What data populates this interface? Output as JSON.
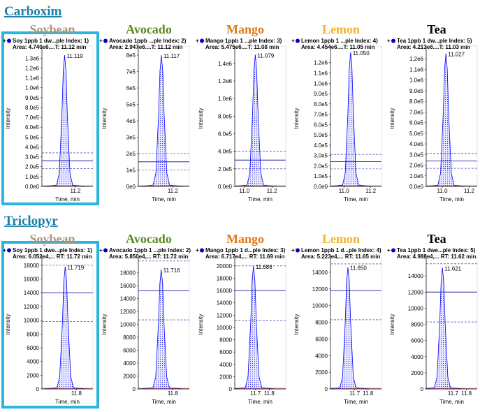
{
  "sections": [
    {
      "heading": "Carboxim"
    },
    {
      "heading": "Triclopyr"
    }
  ],
  "chart_data": [
    {
      "type": "line",
      "title": "Soybean",
      "title_color": "#a8977b",
      "highlighted": true,
      "legend": [
        "Soy 1ppb 1 dw...ple Index: 1)",
        "Area: 4.740e6....T: 11.12 min"
      ],
      "xlabel": "Time, min",
      "ylabel": "Intensity",
      "xlim": [
        10.95,
        11.33
      ],
      "xticks": [
        11.2
      ],
      "ylim": [
        0,
        1380000
      ],
      "yticks": [
        {
          "value": 0,
          "label": "0.0e0"
        },
        {
          "value": 100000,
          "label": "1.0e5"
        },
        {
          "value": 200000,
          "label": "2.0e5"
        },
        {
          "value": 300000,
          "label": "3.0e5"
        },
        {
          "value": 400000,
          "label": "4.0e5"
        },
        {
          "value": 500000,
          "label": "5.0e5"
        },
        {
          "value": 600000,
          "label": "6.0e5"
        },
        {
          "value": 700000,
          "label": "7.0e5"
        },
        {
          "value": 800000,
          "label": "8.0e5"
        },
        {
          "value": 900000,
          "label": "9.0e5"
        },
        {
          "value": 1000000,
          "label": "1.0e6"
        },
        {
          "value": 1100000,
          "label": "1.1e6"
        },
        {
          "value": 1200000,
          "label": "1.2e6"
        },
        {
          "value": 1300000,
          "label": "1.3e6"
        }
      ],
      "thresholds": [
        340000,
        260000,
        180000
      ],
      "series": [
        {
          "color": "#0000ff",
          "x": [
            10.959,
            11.059,
            11.079,
            11.099,
            11.109,
            11.119,
            11.129,
            11.139,
            11.159,
            11.179,
            11.279
          ],
          "values": [
            0,
            13300,
            133000,
            731500,
            1170400,
            1330000,
            1170400,
            731500,
            133000,
            13300,
            0
          ]
        }
      ],
      "annotations": [
        {
          "text": "11.119",
          "x": 11.119,
          "y": 1330000
        }
      ]
    },
    {
      "type": "line",
      "title": "Avocado",
      "title_color": "#5a8a1e",
      "highlighted": false,
      "legend": [
        "Avocado 1ppb ...ple Index: 2)",
        "Area: 2.947e6....T: 11.12 min"
      ],
      "xlabel": "Time, min",
      "ylabel": "Intensity",
      "xlim": [
        10.95,
        11.32
      ],
      "xticks": [
        11.2
      ],
      "ylim": [
        0,
        830000
      ],
      "yticks": [
        {
          "value": 0,
          "label": "0e0"
        },
        {
          "value": 100000,
          "label": "1e5"
        },
        {
          "value": 200000,
          "label": "2e5"
        },
        {
          "value": 300000,
          "label": "3e5"
        },
        {
          "value": 400000,
          "label": "4e5"
        },
        {
          "value": 500000,
          "label": "5e5"
        },
        {
          "value": 600000,
          "label": "6e5"
        },
        {
          "value": 700000,
          "label": "7e5"
        },
        {
          "value": 800000,
          "label": "8e5"
        }
      ],
      "thresholds": [
        200000,
        150000,
        100000
      ],
      "series": [
        {
          "color": "#0000ff",
          "x": [
            10.957,
            11.057,
            11.077,
            11.097,
            11.107,
            11.117,
            11.127,
            11.137,
            11.157,
            11.177,
            11.277
          ],
          "values": [
            0,
            8000,
            80000,
            440000,
            704000,
            800000,
            704000,
            440000,
            80000,
            8000,
            0
          ]
        }
      ],
      "annotations": [
        {
          "text": "11.117",
          "x": 11.117,
          "y": 800000
        }
      ]
    },
    {
      "type": "line",
      "title": "Mango",
      "title_color": "#e0791a",
      "highlighted": false,
      "legend": [
        "Mango 1ppb 1 ...ple Index: 3)",
        "Area: 5.475e6....T: 11.08 min"
      ],
      "xlabel": "Time, min",
      "ylabel": "Intensity",
      "xlim": [
        10.93,
        11.3
      ],
      "xticks": [
        {
          "value": 11.0,
          "label": "11.0"
        },
        11.2
      ],
      "ylim": [
        0,
        1550000
      ],
      "yticks": [
        {
          "value": 0,
          "label": "0.0e0"
        },
        {
          "value": 200000,
          "label": "2.0e5"
        },
        {
          "value": 400000,
          "label": "4.0e5"
        },
        {
          "value": 600000,
          "label": "6.0e5"
        },
        {
          "value": 800000,
          "label": "8.0e5"
        },
        {
          "value": 1000000,
          "label": "1.0e6"
        },
        {
          "value": 1200000,
          "label": "1.2e6"
        },
        {
          "value": 1400000,
          "label": "1.4e6"
        }
      ],
      "thresholds": [
        400000,
        300000,
        200000
      ],
      "series": [
        {
          "color": "#0000ff",
          "x": [
            10.919,
            11.019,
            11.039,
            11.059,
            11.069,
            11.079,
            11.089,
            11.099,
            11.119,
            11.139,
            11.239
          ],
          "values": [
            0,
            15000,
            150000,
            825000,
            1320000,
            1500000,
            1320000,
            825000,
            150000,
            15000,
            0
          ]
        }
      ],
      "annotations": [
        {
          "text": "11.079",
          "x": 11.079,
          "y": 1500000
        }
      ]
    },
    {
      "type": "line",
      "title": "Lemon",
      "title_color": "#f4b52e",
      "highlighted": false,
      "legend": [
        "Lemon 1ppb 1 ...ple Index: 4)",
        "Area: 4.454e6....T: 11.05 min"
      ],
      "xlabel": "Time, min",
      "ylabel": "Intensity",
      "xlim": [
        10.9,
        11.28
      ],
      "xticks": [
        {
          "value": 11.0,
          "label": "11.0"
        },
        11.2
      ],
      "ylim": [
        0,
        1320000
      ],
      "yticks": [
        {
          "value": 0,
          "label": "0.0e0"
        },
        {
          "value": 100000,
          "label": "1.0e5"
        },
        {
          "value": 200000,
          "label": "2.0e5"
        },
        {
          "value": 300000,
          "label": "3.0e5"
        },
        {
          "value": 400000,
          "label": "4.0e5"
        },
        {
          "value": 500000,
          "label": "5.0e5"
        },
        {
          "value": 600000,
          "label": "6.0e5"
        },
        {
          "value": 700000,
          "label": "7.0e5"
        },
        {
          "value": 800000,
          "label": "8.0e5"
        },
        {
          "value": 900000,
          "label": "9.0e5"
        },
        {
          "value": 1000000,
          "label": "1.0e6"
        },
        {
          "value": 1100000,
          "label": "1.1e6"
        },
        {
          "value": 1200000,
          "label": "1.2e6"
        }
      ],
      "thresholds": [
        310000,
        240000,
        170000
      ],
      "series": [
        {
          "color": "#0000ff",
          "x": [
            10.89,
            10.99,
            11.01,
            11.03,
            11.04,
            11.05,
            11.06,
            11.07,
            11.09,
            11.11,
            11.21
          ],
          "values": [
            0,
            13000,
            130000,
            715000,
            1144000,
            1300000,
            1144000,
            715000,
            130000,
            13000,
            0
          ]
        }
      ],
      "annotations": [
        {
          "text": "11.050",
          "x": 11.05,
          "y": 1300000
        }
      ]
    },
    {
      "type": "line",
      "title": "Tea",
      "title_color": "#000000",
      "highlighted": false,
      "legend": [
        "Tea 1ppb 1 dw...ple Index: 5)",
        "Area: 4.213e6....T: 11.03 min"
      ],
      "xlabel": "Time, min",
      "ylabel": "Intensity",
      "xlim": [
        10.88,
        11.26
      ],
      "xticks": [
        {
          "value": 11.0,
          "label": "11.0"
        },
        11.2
      ],
      "ylim": [
        0,
        1280000
      ],
      "yticks": [
        {
          "value": 0,
          "label": "0.0e0"
        },
        {
          "value": 100000,
          "label": "1.0e5"
        },
        {
          "value": 200000,
          "label": "2.0e5"
        },
        {
          "value": 300000,
          "label": "3.0e5"
        },
        {
          "value": 400000,
          "label": "4.0e5"
        },
        {
          "value": 500000,
          "label": "5.0e5"
        },
        {
          "value": 600000,
          "label": "6.0e5"
        },
        {
          "value": 700000,
          "label": "7.0e5"
        },
        {
          "value": 800000,
          "label": "8.0e5"
        },
        {
          "value": 900000,
          "label": "9.0e5"
        },
        {
          "value": 1000000,
          "label": "1.0e6"
        },
        {
          "value": 1100000,
          "label": "1.1e6"
        },
        {
          "value": 1200000,
          "label": "1.2e6"
        }
      ],
      "thresholds": [
        310000,
        240000,
        170000
      ],
      "series": [
        {
          "color": "#0000ff",
          "x": [
            10.867,
            10.967,
            10.987,
            11.007,
            11.017,
            11.027,
            11.037,
            11.047,
            11.067,
            11.087,
            11.187
          ],
          "values": [
            0,
            12500,
            125000,
            687500,
            1100000,
            1250000,
            1100000,
            687500,
            125000,
            12500,
            0
          ]
        }
      ],
      "annotations": [
        {
          "text": "11.027",
          "x": 11.027,
          "y": 1250000
        }
      ]
    },
    {
      "type": "line",
      "title": "Soybean",
      "title_color": "#a8977b",
      "highlighted": true,
      "legend": [
        "Soy 1ppb 1 dwe...ple Index: 1)",
        "Area: 6.052e4,... RT: 11.72 min"
      ],
      "xlabel": "Time, min",
      "ylabel": "Intensity",
      "xlim": [
        11.55,
        11.92
      ],
      "xticks": [
        11.8
      ],
      "ylim": [
        0,
        18800
      ],
      "yticks": [
        0,
        2000,
        4000,
        6000,
        8000,
        10000,
        12000,
        14000,
        16000,
        18000
      ],
      "thresholds": [
        18000,
        14000,
        9800
      ],
      "series": [
        {
          "color": "#0000ff",
          "x": [
            11.559,
            11.659,
            11.679,
            11.699,
            11.709,
            11.719,
            11.729,
            11.739,
            11.759,
            11.779,
            11.879
          ],
          "values": [
            0,
            178,
            1780,
            9790,
            15664,
            17800,
            15664,
            9790,
            1780,
            178,
            0
          ]
        }
      ],
      "annotations": [
        {
          "text": "11.719",
          "x": 11.719,
          "y": 17800
        }
      ]
    },
    {
      "type": "line",
      "title": "Avocado",
      "title_color": "#5a8a1e",
      "highlighted": false,
      "legend": [
        "Avocado 1ppb 1 ...ple Index: 2)",
        "Area: 5.850e4,... RT: 11.72 min"
      ],
      "xlabel": "Time, min",
      "ylabel": "Intensity",
      "xlim": [
        11.55,
        11.92
      ],
      "xticks": [
        11.8
      ],
      "ylim": [
        0,
        20000
      ],
      "yticks": [
        0,
        2000,
        4000,
        6000,
        8000,
        10000,
        12000,
        14000,
        16000,
        18000
      ],
      "thresholds": [
        19800,
        15200,
        10700
      ],
      "series": [
        {
          "color": "#0000ff",
          "x": [
            11.556,
            11.656,
            11.676,
            11.696,
            11.706,
            11.716,
            11.726,
            11.736,
            11.756,
            11.776,
            11.876
          ],
          "values": [
            0,
            185,
            1850,
            10175,
            16280,
            18500,
            16280,
            10175,
            1850,
            185,
            0
          ]
        }
      ],
      "annotations": [
        {
          "text": "11.716",
          "x": 11.716,
          "y": 18500
        }
      ]
    },
    {
      "type": "line",
      "title": "Mango",
      "title_color": "#e0791a",
      "highlighted": false,
      "legend": [
        "Mango 1ppb 1 d...ple Index: 3)",
        "Area: 6.717e4,... RT: 11.69 min"
      ],
      "xlabel": "Time, min",
      "ylabel": "Intensity",
      "xlim": [
        11.55,
        11.92
      ],
      "xticks": [
        11.7,
        11.8
      ],
      "ylim": [
        0,
        21000
      ],
      "yticks": [
        0,
        2000,
        4000,
        6000,
        8000,
        10000,
        12000,
        14000,
        16000,
        18000,
        20000
      ],
      "thresholds": [
        20000,
        16000,
        11200
      ],
      "series": [
        {
          "color": "#0000ff",
          "x": [
            11.526,
            11.626,
            11.646,
            11.666,
            11.676,
            11.686,
            11.696,
            11.706,
            11.726,
            11.746,
            11.846
          ],
          "values": [
            0,
            200,
            2000,
            11000,
            17600,
            20000,
            17600,
            11000,
            2000,
            200,
            0
          ]
        }
      ],
      "annotations": [
        {
          "text": "11.686",
          "x": 11.686,
          "y": 20000
        }
      ]
    },
    {
      "type": "line",
      "title": "Lemon",
      "title_color": "#f4b52e",
      "highlighted": false,
      "legend": [
        "Lemon 1ppb 1 d...ple Index: 4)",
        "Area: 5.223e4,... RT: 11.65 min"
      ],
      "xlabel": "Time, min",
      "ylabel": "Intensity",
      "xlim": [
        11.52,
        11.9
      ],
      "xticks": [
        11.7,
        11.8
      ],
      "ylim": [
        0,
        15500
      ],
      "yticks": [
        0,
        2000,
        4000,
        6000,
        8000,
        10000,
        12000,
        14000
      ],
      "thresholds": [
        15000,
        11800,
        8300
      ],
      "series": [
        {
          "color": "#0000ff",
          "x": [
            11.49,
            11.59,
            11.61,
            11.63,
            11.64,
            11.65,
            11.66,
            11.67,
            11.69,
            11.71,
            11.81
          ],
          "values": [
            0,
            146,
            1460,
            8030,
            12848,
            14600,
            12848,
            8030,
            1460,
            146,
            0
          ]
        }
      ],
      "annotations": [
        {
          "text": "11.650",
          "x": 11.65,
          "y": 14600
        }
      ]
    },
    {
      "type": "line",
      "title": "Tea",
      "title_color": "#000000",
      "highlighted": false,
      "legend": [
        "Tea 1ppb 1 dwe...ple Index: 5)",
        "Area: 4.988e4,... RT: 11.62 min"
      ],
      "xlabel": "Time, min",
      "ylabel": "Intensity",
      "xlim": [
        11.5,
        11.88
      ],
      "xticks": [
        11.7,
        11.8
      ],
      "ylim": [
        0,
        16000
      ],
      "yticks": [
        0,
        2000,
        4000,
        6000,
        8000,
        10000,
        12000,
        14000
      ],
      "thresholds": [
        15500,
        12000,
        8300
      ],
      "series": [
        {
          "color": "#0000ff",
          "x": [
            11.461,
            11.561,
            11.581,
            11.601,
            11.611,
            11.621,
            11.631,
            11.641,
            11.661,
            11.681,
            11.781
          ],
          "values": [
            0,
            150,
            1500,
            8250,
            13200,
            15000,
            13200,
            8250,
            1500,
            150,
            0
          ]
        }
      ],
      "annotations": [
        {
          "text": "11.621",
          "x": 11.621,
          "y": 15000
        }
      ]
    }
  ]
}
